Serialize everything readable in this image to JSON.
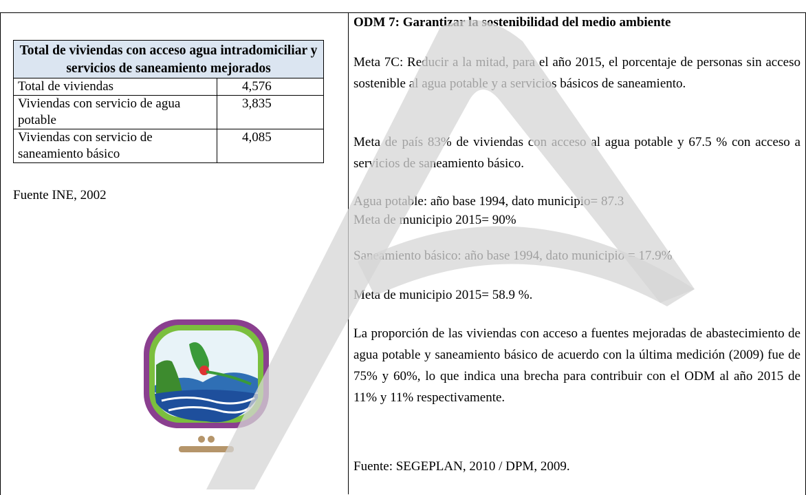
{
  "left": {
    "table": {
      "title": "Total de viviendas con acceso agua intradomiciliar y servicios de saneamiento mejorados",
      "rows": [
        [
          "Total de viviendas",
          "4,576"
        ],
        [
          "Viviendas con servicio de agua potable",
          "3,835"
        ],
        [
          "Viviendas con servicio de saneamiento básico",
          "4,085"
        ]
      ]
    },
    "source": "Fuente INE, 2002"
  },
  "right": {
    "title": "ODM 7: Garantizar la sostenibilidad del medio ambiente",
    "paragraphs": [
      [
        "Meta 7C: Reducir a la mitad, para el año 2015, el porcentaje de personas sin acceso sostenible al agua potable y a servicios básicos de saneamiento."
      ],
      [
        "Meta de país 83% de viviendas con acceso al agua potable y 67.5 % con acceso a servicios de saneamiento básico."
      ],
      [
        "Agua potable: año base 1994, dato municipio= 87.3",
        "Meta de municipio 2015= 90%"
      ],
      [
        "Saneamiento básico: año base 1994, dato municipio = 17.9%"
      ],
      [
        "Meta de municipio 2015= 58.9 %."
      ],
      [
        "La proporción de las viviendas con acceso a fuentes mejoradas de abastecimiento de agua potable y saneamiento básico de acuerdo con la última medición (2009) fue de 75% y 60%, lo que indica una brecha para contribuir con el ODM al año 2015 de 11% y 11% respectivamente."
      ],
      [
        "Fuente: SEGEPLAN, 2010 / DPM, 2009."
      ]
    ]
  }
}
